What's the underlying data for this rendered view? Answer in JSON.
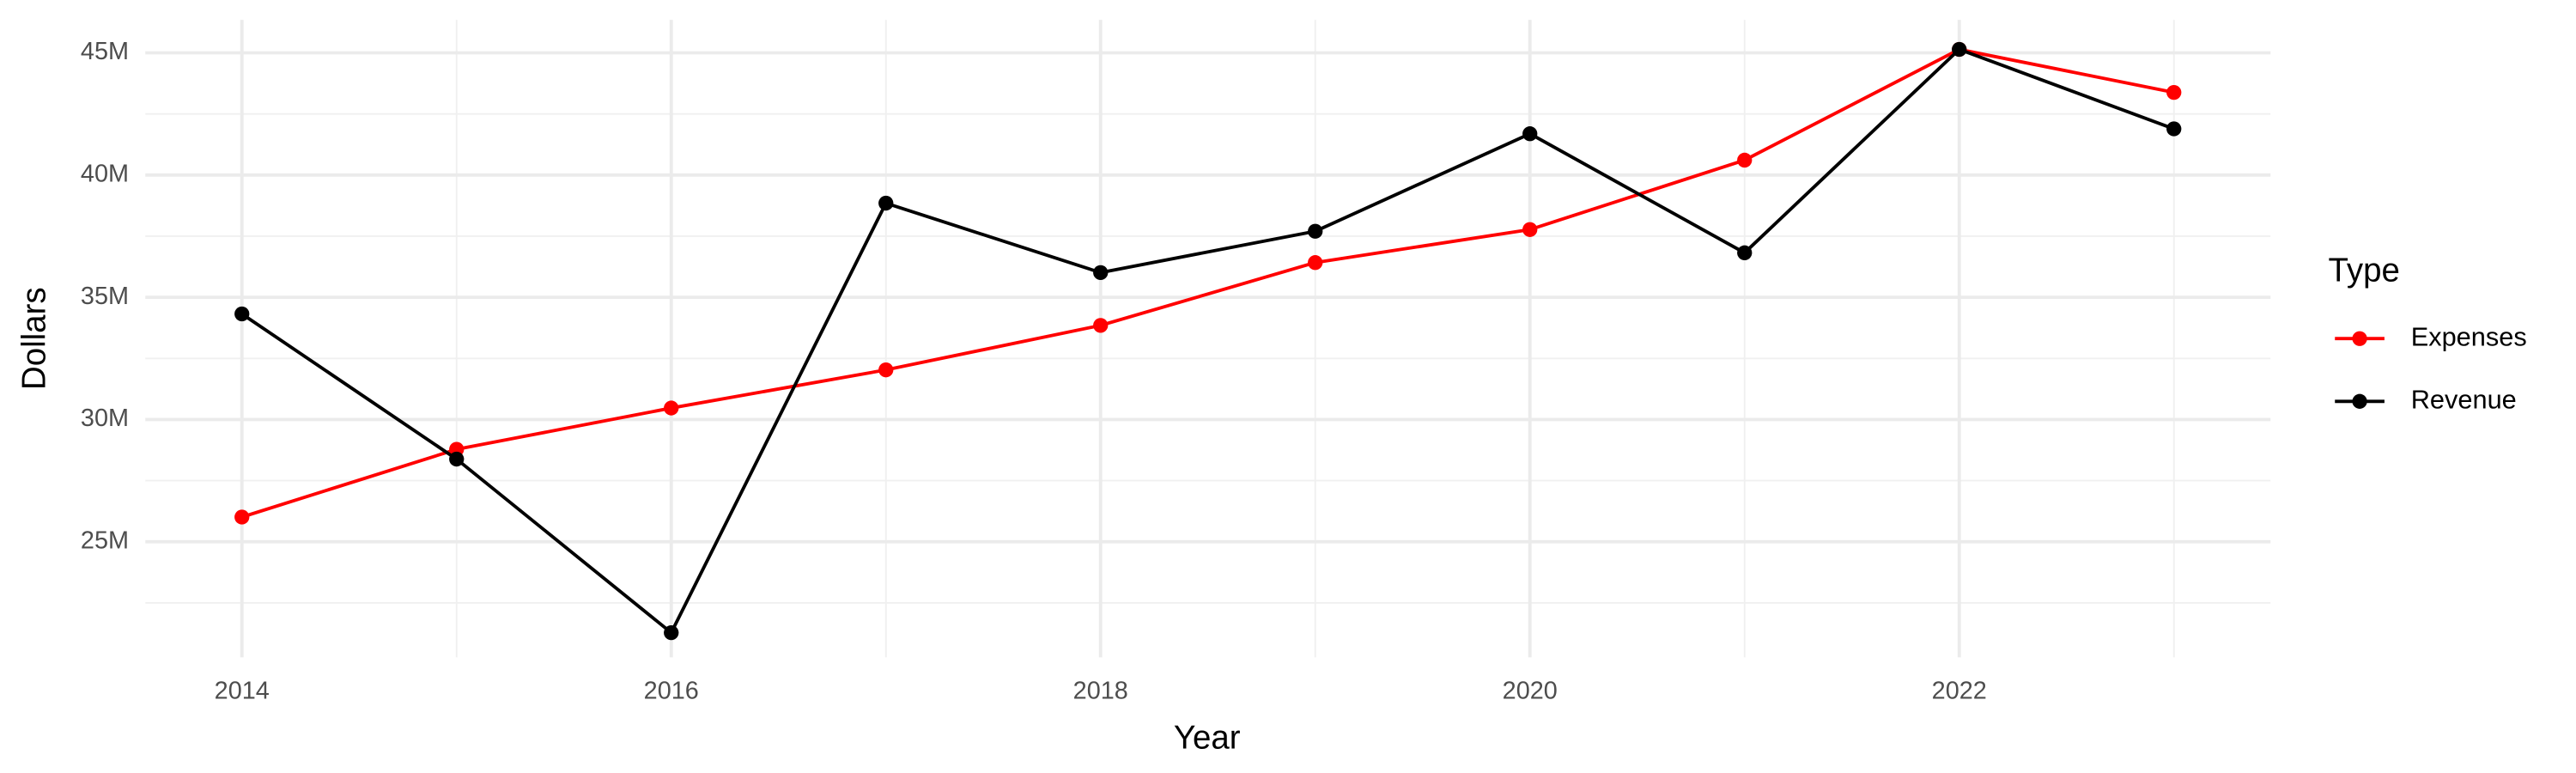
{
  "chart_data": {
    "type": "line",
    "x_label": "Year",
    "y_label": "Dollars",
    "legend_title": "Type",
    "legend_position": "right",
    "grid": true,
    "x": [
      2014,
      2015,
      2016,
      2017,
      2018,
      2019,
      2020,
      2021,
      2022,
      2023
    ],
    "series": [
      {
        "name": "Expenses",
        "color": "#ff0000",
        "values": [
          26010000,
          28780000,
          30470000,
          32030000,
          33850000,
          36420000,
          37770000,
          40610000,
          45140000,
          43380000
        ]
      },
      {
        "name": "Revenue",
        "color": "#000000",
        "values": [
          34320000,
          28380000,
          21280000,
          38850000,
          36010000,
          37700000,
          41690000,
          36820000,
          45140000,
          41890000
        ]
      }
    ],
    "xlim": [
      2013.55,
      2023.45
    ],
    "xticks": [
      2014,
      2016,
      2018,
      2020,
      2022
    ],
    "ylim": [
      20270000,
      46350000
    ],
    "yticks": [
      {
        "value": 25000000,
        "label": "25M"
      },
      {
        "value": 30000000,
        "label": "30M"
      },
      {
        "value": 35000000,
        "label": "35M"
      },
      {
        "value": 40000000,
        "label": "40M"
      },
      {
        "value": 45000000,
        "label": "45M"
      }
    ]
  }
}
